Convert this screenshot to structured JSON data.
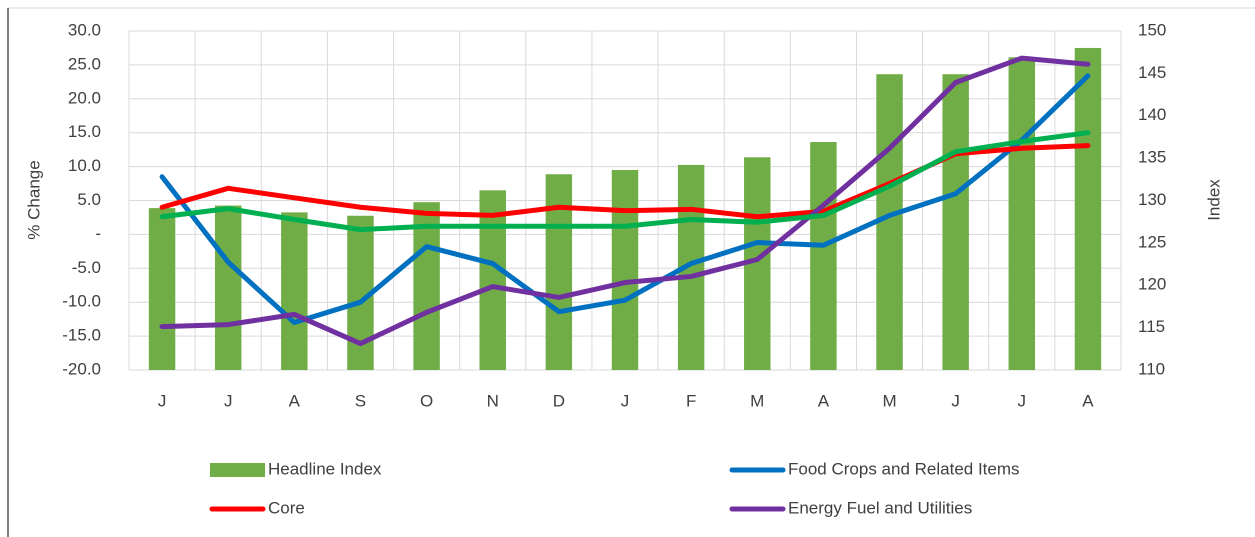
{
  "chart_data": {
    "type": "bar-line",
    "categories": [
      "J",
      "J",
      "A",
      "S",
      "O",
      "N",
      "D",
      "J",
      "F",
      "M",
      "A",
      "M",
      "J",
      "J",
      "A"
    ],
    "ylabel": "% Change",
    "y2label": "Index",
    "ylim": [
      -20,
      30
    ],
    "yticks": [
      {
        "value": -20,
        "label": "-20.0"
      },
      {
        "value": -15,
        "label": "-15.0"
      },
      {
        "value": -10,
        "label": "-10.0"
      },
      {
        "value": -5,
        "label": "-5.0"
      },
      {
        "value": 0,
        "label": "-"
      },
      {
        "value": 5,
        "label": "5.0"
      },
      {
        "value": 10,
        "label": "10.0"
      },
      {
        "value": 15,
        "label": "15.0"
      },
      {
        "value": 20,
        "label": "20.0"
      },
      {
        "value": 25,
        "label": "25.0"
      },
      {
        "value": 30,
        "label": "30.0"
      }
    ],
    "y2lim": [
      110,
      150
    ],
    "y2ticks": [
      110,
      115,
      120,
      125,
      130,
      135,
      140,
      145,
      150
    ],
    "grid": true,
    "series": [
      {
        "name": "Headline Index",
        "kind": "bar",
        "axis": "y2",
        "color": "#70ad47",
        "values": [
          129.1,
          129.4,
          128.6,
          128.2,
          129.8,
          131.2,
          133.1,
          133.6,
          134.2,
          135.1,
          136.9,
          144.9,
          144.9,
          146.9,
          148.0
        ]
      },
      {
        "name": "Food Crops and Related Items",
        "kind": "line",
        "color": "#0070c0",
        "values": [
          8.5,
          -4.1,
          -13.0,
          -10.0,
          -1.8,
          -4.3,
          -11.4,
          -9.7,
          -4.3,
          -1.2,
          -1.6,
          2.8,
          6.0,
          13.9,
          23.4
        ]
      },
      {
        "name": "Core",
        "kind": "line",
        "color": "#ff0000",
        "values": [
          4.0,
          6.8,
          5.4,
          4.0,
          3.1,
          2.8,
          4.0,
          3.5,
          3.7,
          2.6,
          3.4,
          7.5,
          11.9,
          12.7,
          13.1
        ]
      },
      {
        "name": "Energy Fuel and Utilities",
        "kind": "line",
        "color": "#7030a0",
        "values": [
          -13.6,
          -13.3,
          -11.8,
          -16.1,
          -11.5,
          -7.7,
          -9.3,
          -7.1,
          -6.2,
          -3.7,
          4.3,
          12.7,
          22.4,
          26.0,
          25.1
        ]
      },
      {
        "kind": "line",
        "color": "#00b050",
        "values": [
          2.6,
          3.8,
          2.2,
          0.7,
          1.2,
          1.2,
          1.2,
          1.2,
          2.2,
          1.8,
          2.8,
          7.1,
          12.2,
          13.7,
          15.0
        ]
      }
    ]
  }
}
